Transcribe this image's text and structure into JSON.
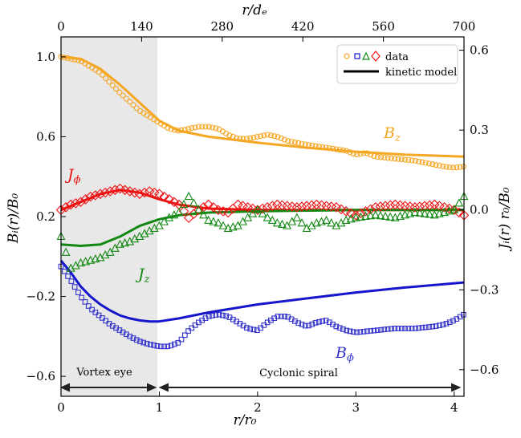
{
  "chart_data": {
    "type": "line",
    "xlabel": "r/r₀",
    "top_xlabel": "r/dₑ",
    "ylabel_left": "Bᵢ(r)/B₀",
    "ylabel_right": "Jᵢ(r) r₀/B₀",
    "xlim": [
      0,
      4.1
    ],
    "ylim_left": [
      -0.7,
      1.1
    ],
    "ylim_right": [
      -0.7,
      0.65
    ],
    "x_ticks": [
      "0",
      "1",
      "2",
      "3",
      "4"
    ],
    "top_ticks": [
      "0",
      "140",
      "280",
      "420",
      "560",
      "700"
    ],
    "top_tick_values": [
      0,
      140,
      280,
      420,
      560,
      700
    ],
    "top_max": 700,
    "left_ticks": [
      "−0.6",
      "−0.2",
      "0.2",
      "0.6",
      "1.0"
    ],
    "left_tick_values": [
      -0.6,
      -0.2,
      0.2,
      0.6,
      1.0
    ],
    "right_ticks": [
      "−0.6",
      "−0.3",
      "0.0",
      "0.3",
      "0.6"
    ],
    "right_tick_values": [
      -0.6,
      -0.3,
      0.0,
      0.3,
      0.6
    ],
    "shaded_region": [
      0,
      0.98
    ],
    "annotations": {
      "vortex_eye": "Vortex eye",
      "cyclonic_spiral": "Cyclonic spiral",
      "bz": "B_z",
      "bphi": "B_ϕ",
      "jphi": "J_ϕ",
      "jz": "J_z"
    },
    "legend": {
      "position": "top-right",
      "data_label": "data",
      "model_label": "kinetic model"
    },
    "series": [
      {
        "name": "Bz",
        "axis": "left",
        "color": "#f5a623",
        "model": [
          [
            0,
            1.0
          ],
          [
            0.2,
            0.99
          ],
          [
            0.4,
            0.94
          ],
          [
            0.6,
            0.86
          ],
          [
            0.8,
            0.77
          ],
          [
            1.0,
            0.68
          ],
          [
            1.2,
            0.63
          ],
          [
            1.5,
            0.6
          ],
          [
            2.0,
            0.57
          ],
          [
            2.5,
            0.545
          ],
          [
            3.0,
            0.525
          ],
          [
            3.5,
            0.51
          ],
          [
            4.1,
            0.5
          ]
        ],
        "data": [
          [
            0,
            1.0
          ],
          [
            0.2,
            0.98
          ],
          [
            0.4,
            0.92
          ],
          [
            0.6,
            0.82
          ],
          [
            0.8,
            0.73
          ],
          [
            1.0,
            0.67
          ],
          [
            1.1,
            0.64
          ],
          [
            1.2,
            0.63
          ],
          [
            1.3,
            0.64
          ],
          [
            1.4,
            0.65
          ],
          [
            1.5,
            0.65
          ],
          [
            1.6,
            0.64
          ],
          [
            1.7,
            0.61
          ],
          [
            1.8,
            0.59
          ],
          [
            1.9,
            0.59
          ],
          [
            2.0,
            0.6
          ],
          [
            2.1,
            0.61
          ],
          [
            2.2,
            0.6
          ],
          [
            2.3,
            0.58
          ],
          [
            2.5,
            0.56
          ],
          [
            2.7,
            0.545
          ],
          [
            2.9,
            0.53
          ],
          [
            3.0,
            0.51
          ],
          [
            3.1,
            0.52
          ],
          [
            3.2,
            0.5
          ],
          [
            3.4,
            0.49
          ],
          [
            3.6,
            0.48
          ],
          [
            3.8,
            0.46
          ],
          [
            3.9,
            0.45
          ],
          [
            4.0,
            0.445
          ],
          [
            4.1,
            0.45
          ]
        ]
      },
      {
        "name": "Bphi",
        "axis": "left",
        "color": "#1010d0",
        "model": [
          [
            0,
            -0.02
          ],
          [
            0.1,
            -0.08
          ],
          [
            0.2,
            -0.15
          ],
          [
            0.3,
            -0.2
          ],
          [
            0.4,
            -0.24
          ],
          [
            0.5,
            -0.27
          ],
          [
            0.6,
            -0.295
          ],
          [
            0.7,
            -0.31
          ],
          [
            0.8,
            -0.32
          ],
          [
            0.9,
            -0.325
          ],
          [
            1.0,
            -0.325
          ],
          [
            1.2,
            -0.31
          ],
          [
            1.5,
            -0.28
          ],
          [
            2.0,
            -0.24
          ],
          [
            2.5,
            -0.21
          ],
          [
            3.0,
            -0.18
          ],
          [
            3.5,
            -0.155
          ],
          [
            4.1,
            -0.13
          ]
        ],
        "data": [
          [
            0,
            -0.05
          ],
          [
            0.1,
            -0.12
          ],
          [
            0.2,
            -0.2
          ],
          [
            0.3,
            -0.26
          ],
          [
            0.4,
            -0.3
          ],
          [
            0.5,
            -0.34
          ],
          [
            0.6,
            -0.37
          ],
          [
            0.7,
            -0.4
          ],
          [
            0.8,
            -0.425
          ],
          [
            0.9,
            -0.44
          ],
          [
            1.0,
            -0.45
          ],
          [
            1.1,
            -0.45
          ],
          [
            1.2,
            -0.43
          ],
          [
            1.3,
            -0.37
          ],
          [
            1.4,
            -0.33
          ],
          [
            1.5,
            -0.3
          ],
          [
            1.6,
            -0.29
          ],
          [
            1.7,
            -0.3
          ],
          [
            1.8,
            -0.33
          ],
          [
            1.9,
            -0.36
          ],
          [
            2.0,
            -0.37
          ],
          [
            2.1,
            -0.33
          ],
          [
            2.2,
            -0.3
          ],
          [
            2.3,
            -0.3
          ],
          [
            2.4,
            -0.33
          ],
          [
            2.5,
            -0.35
          ],
          [
            2.6,
            -0.33
          ],
          [
            2.7,
            -0.32
          ],
          [
            2.8,
            -0.35
          ],
          [
            2.9,
            -0.37
          ],
          [
            3.0,
            -0.38
          ],
          [
            3.2,
            -0.37
          ],
          [
            3.4,
            -0.36
          ],
          [
            3.6,
            -0.36
          ],
          [
            3.8,
            -0.35
          ],
          [
            3.9,
            -0.34
          ],
          [
            4.0,
            -0.32
          ],
          [
            4.1,
            -0.29
          ]
        ]
      },
      {
        "name": "Jphi",
        "axis": "right",
        "color": "#ee1111",
        "model": [
          [
            0,
            0.0
          ],
          [
            0.2,
            0.03
          ],
          [
            0.4,
            0.06
          ],
          [
            0.6,
            0.075
          ],
          [
            0.8,
            0.065
          ],
          [
            1.0,
            0.04
          ],
          [
            1.2,
            0.02
          ],
          [
            1.5,
            0.005
          ],
          [
            2.0,
            0.0
          ],
          [
            3.0,
            0.0
          ],
          [
            4.1,
            0.0
          ]
        ],
        "data": [
          [
            0,
            0.0
          ],
          [
            0.1,
            0.02
          ],
          [
            0.2,
            0.03
          ],
          [
            0.3,
            0.05
          ],
          [
            0.4,
            0.06
          ],
          [
            0.5,
            0.07
          ],
          [
            0.6,
            0.08
          ],
          [
            0.7,
            0.07
          ],
          [
            0.8,
            0.06
          ],
          [
            0.9,
            0.07
          ],
          [
            1.0,
            0.06
          ],
          [
            1.1,
            0.04
          ],
          [
            1.2,
            0.02
          ],
          [
            1.3,
            -0.03
          ],
          [
            1.4,
            0.0
          ],
          [
            1.5,
            0.02
          ],
          [
            1.6,
            0.0
          ],
          [
            1.7,
            -0.01
          ],
          [
            1.8,
            0.02
          ],
          [
            2.0,
            0.0
          ],
          [
            2.2,
            0.02
          ],
          [
            2.4,
            0.01
          ],
          [
            2.6,
            0.02
          ],
          [
            2.8,
            0.01
          ],
          [
            3.0,
            -0.02
          ],
          [
            3.2,
            0.01
          ],
          [
            3.4,
            0.02
          ],
          [
            3.6,
            0.01
          ],
          [
            3.8,
            0.02
          ],
          [
            4.0,
            0.0
          ],
          [
            4.1,
            -0.02
          ]
        ]
      },
      {
        "name": "Jz",
        "axis": "right",
        "color": "#118811",
        "model": [
          [
            0,
            -0.13
          ],
          [
            0.2,
            -0.135
          ],
          [
            0.4,
            -0.13
          ],
          [
            0.6,
            -0.1
          ],
          [
            0.8,
            -0.06
          ],
          [
            1.0,
            -0.035
          ],
          [
            1.2,
            -0.02
          ],
          [
            1.5,
            -0.01
          ],
          [
            2.0,
            -0.005
          ],
          [
            3.0,
            0.0
          ],
          [
            4.1,
            0.0
          ]
        ],
        "data": [
          [
            0,
            -0.1
          ],
          [
            0.1,
            -0.22
          ],
          [
            0.2,
            -0.2
          ],
          [
            0.3,
            -0.19
          ],
          [
            0.4,
            -0.18
          ],
          [
            0.5,
            -0.16
          ],
          [
            0.6,
            -0.13
          ],
          [
            0.7,
            -0.12
          ],
          [
            0.8,
            -0.1
          ],
          [
            0.9,
            -0.08
          ],
          [
            1.0,
            -0.06
          ],
          [
            1.1,
            -0.03
          ],
          [
            1.2,
            -0.01
          ],
          [
            1.3,
            0.05
          ],
          [
            1.4,
            0.0
          ],
          [
            1.5,
            -0.04
          ],
          [
            1.6,
            -0.05
          ],
          [
            1.7,
            -0.07
          ],
          [
            1.8,
            -0.06
          ],
          [
            1.9,
            -0.03
          ],
          [
            2.0,
            0.0
          ],
          [
            2.1,
            -0.03
          ],
          [
            2.2,
            -0.05
          ],
          [
            2.3,
            -0.06
          ],
          [
            2.4,
            -0.03
          ],
          [
            2.5,
            -0.07
          ],
          [
            2.6,
            -0.05
          ],
          [
            2.7,
            -0.04
          ],
          [
            2.8,
            -0.06
          ],
          [
            2.9,
            -0.04
          ],
          [
            3.0,
            -0.03
          ],
          [
            3.2,
            -0.02
          ],
          [
            3.4,
            -0.03
          ],
          [
            3.6,
            -0.01
          ],
          [
            3.8,
            -0.02
          ],
          [
            4.0,
            0.0
          ],
          [
            4.1,
            0.05
          ]
        ]
      }
    ]
  }
}
